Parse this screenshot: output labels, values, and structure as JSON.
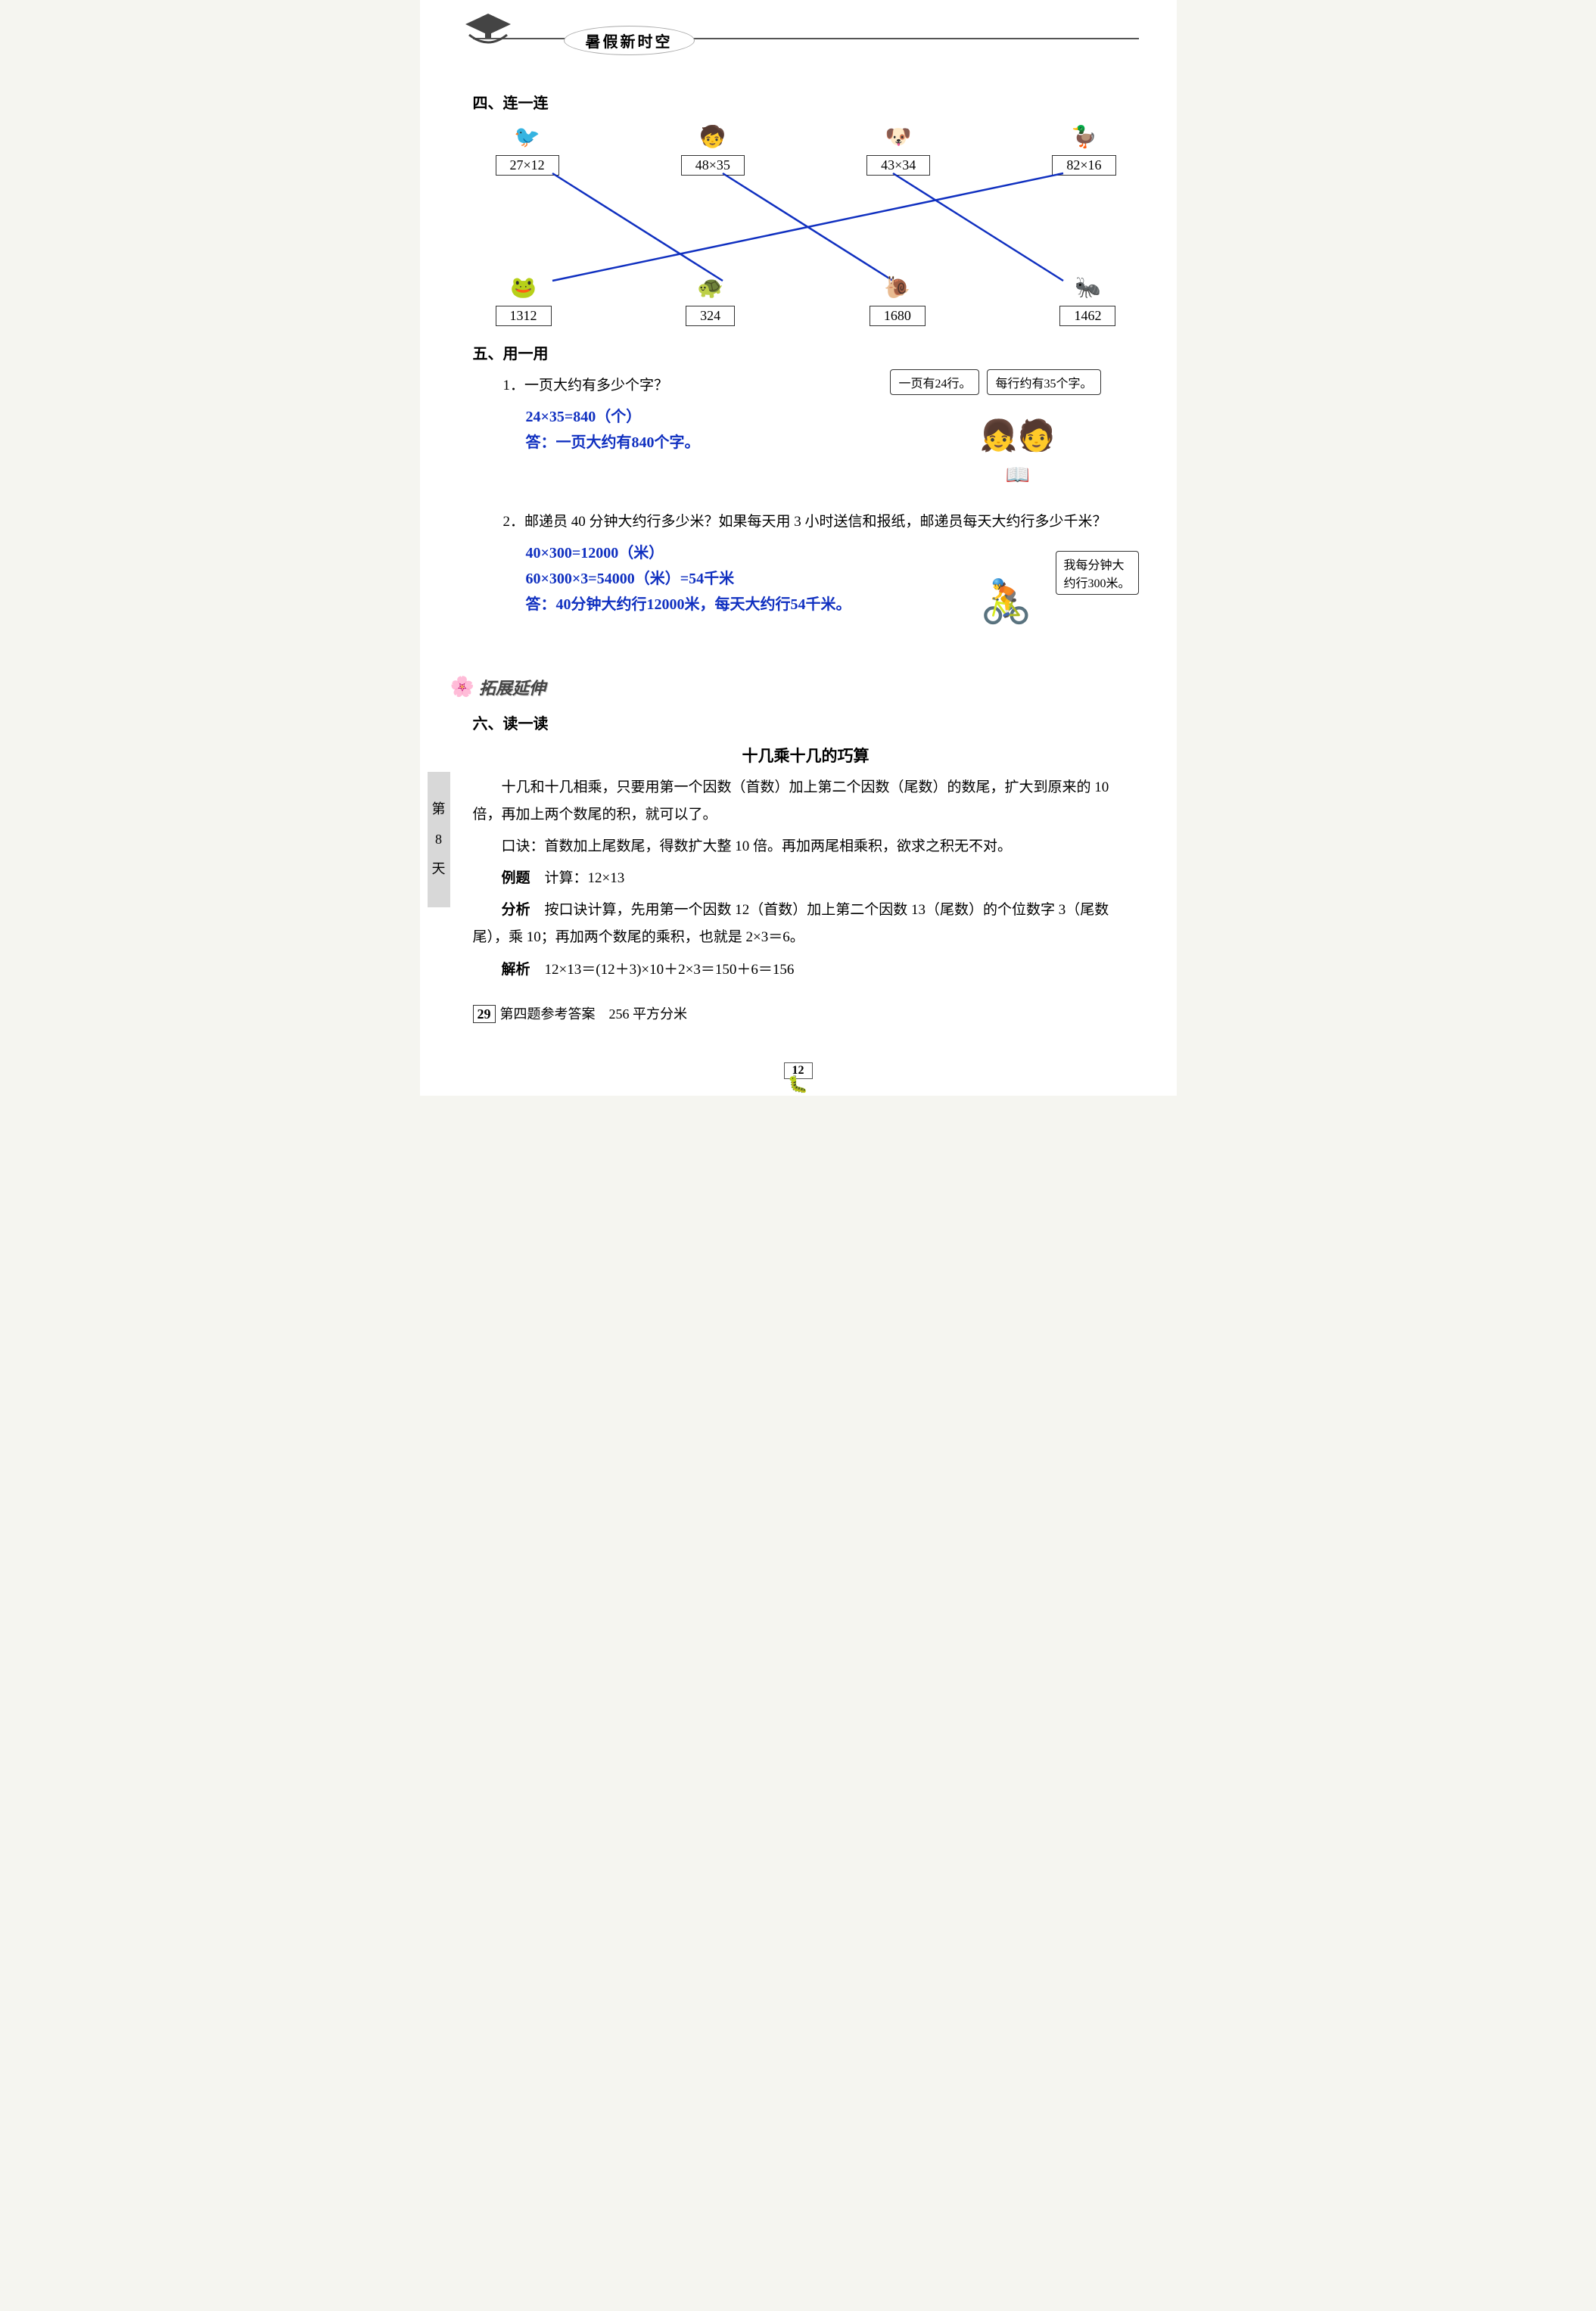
{
  "header": {
    "title": "暑假新时空"
  },
  "side_tab": {
    "l1": "第",
    "l2": "8",
    "l3": "天"
  },
  "page_number": "12",
  "section4": {
    "title": "四、连一连",
    "top": [
      {
        "expr": "27×12",
        "emoji": "🐦"
      },
      {
        "expr": "48×35",
        "emoji": "🧒"
      },
      {
        "expr": "43×34",
        "emoji": "🐶"
      },
      {
        "expr": "82×16",
        "emoji": "🦆"
      }
    ],
    "bottom": [
      {
        "val": "1312",
        "emoji": "🐸"
      },
      {
        "val": "324",
        "emoji": "🐢"
      },
      {
        "val": "1680",
        "emoji": "🐌"
      },
      {
        "val": "1462",
        "emoji": "🐜"
      }
    ],
    "matches": [
      {
        "from": 0,
        "to": 1
      },
      {
        "from": 1,
        "to": 2
      },
      {
        "from": 2,
        "to": 3
      },
      {
        "from": 3,
        "to": 0
      }
    ],
    "line_color": "#1030c0",
    "x_positions": [
      105,
      330,
      555,
      780
    ]
  },
  "section5": {
    "title": "五、用一用",
    "q1": {
      "prompt": "1．一页大约有多少个字？",
      "bubble1": "一页有24行。",
      "bubble2": "每行约有35个字。",
      "ans1": "24×35=840（个）",
      "ans2": "答：一页大约有840个字。"
    },
    "q2": {
      "prompt": "2．邮递员 40 分钟大约行多少米？如果每天用 3 小时送信和报纸，邮递员每天大约行多少千米？",
      "bubble": "我每分钟大约行300米。",
      "ans1": "40×300=12000（米）",
      "ans2": "60×300×3=54000（米）=54千米",
      "ans3": "答：40分钟大约行12000米，每天大约行54千米。"
    }
  },
  "extension_label": "拓展延伸",
  "section6": {
    "title": "六、读一读",
    "subtitle": "十几乘十几的巧算",
    "p1": "十几和十几相乘，只要用第一个因数（首数）加上第二个因数（尾数）的数尾，扩大到原来的 10 倍，再加上两个数尾的积，就可以了。",
    "p2": "口诀：首数加上尾数尾，得数扩大整 10 倍。再加两尾相乘积，欲求之积无不对。",
    "ex_label": "例题",
    "ex_text": "计算：12×13",
    "an_label": "分析",
    "an_text": "按口诀计算，先用第一个因数 12（首数）加上第二个因数 13（尾数）的个位数字 3（尾数尾），乘 10；再加两个数尾的乘积，也就是 2×3＝6。",
    "so_label": "解析",
    "so_text": "12×13＝(12＋3)×10＋2×3＝150＋6＝156"
  },
  "answer_ref": {
    "num": "29",
    "text": "第四题参考答案　256 平方分米"
  },
  "colors": {
    "answer": "#1030c0",
    "text": "#111111",
    "bg": "#ffffff"
  },
  "fontsizes": {
    "body": 19,
    "title": 20,
    "answer": 20
  }
}
